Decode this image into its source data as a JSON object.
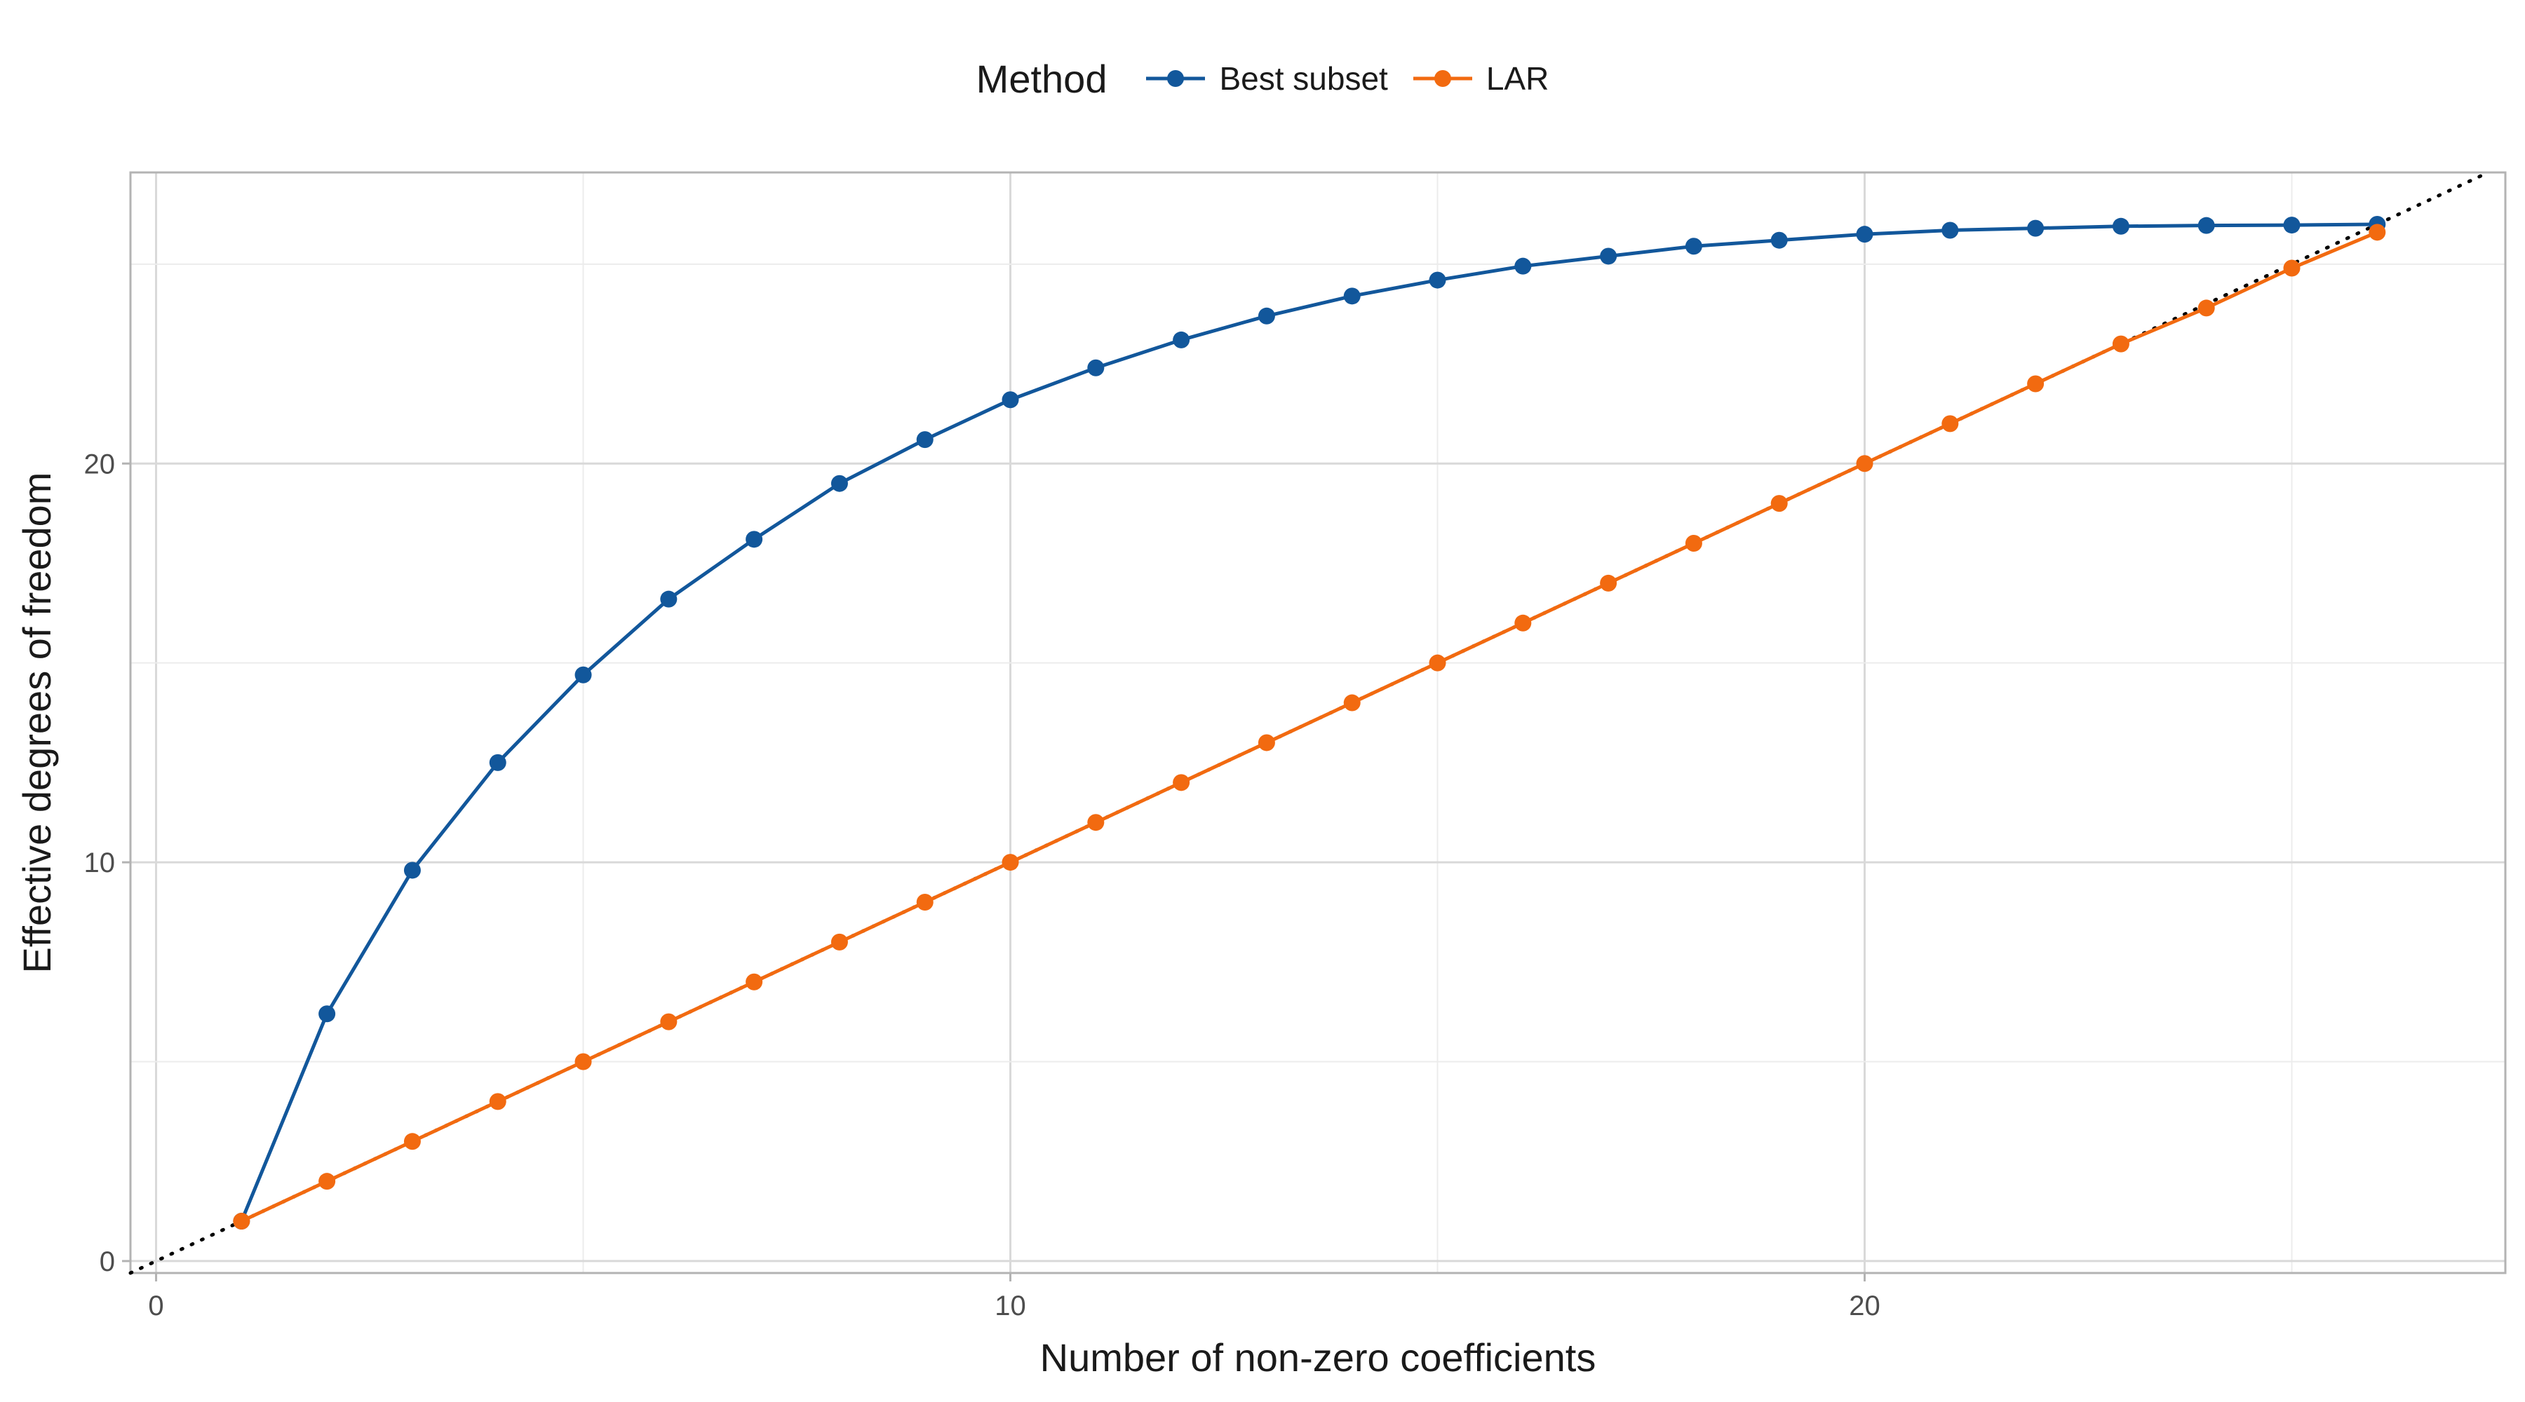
{
  "legend": {
    "title": "Method",
    "items": [
      {
        "label": "Best subset",
        "color": "#12579b"
      },
      {
        "label": "LAR",
        "color": "#f26a10"
      }
    ]
  },
  "chart_data": {
    "type": "line",
    "xlabel": "Number of non-zero coefficients",
    "ylabel": "Effective degrees of freedom",
    "xlim": [
      -0.3,
      27.5
    ],
    "ylim": [
      -0.3,
      27.3
    ],
    "x_ticks": [
      0,
      10,
      20
    ],
    "y_ticks": [
      0,
      10,
      20
    ],
    "grid": true,
    "legend_position": "top",
    "reference_line": {
      "style": "dotted",
      "slope": 1,
      "intercept": 0,
      "color": "#000000"
    },
    "x": [
      1,
      2,
      3,
      4,
      5,
      6,
      7,
      8,
      9,
      10,
      11,
      12,
      13,
      14,
      15,
      16,
      17,
      18,
      19,
      20,
      21,
      22,
      23,
      24,
      25,
      26
    ],
    "series": [
      {
        "name": "Best subset",
        "color": "#12579b",
        "values": [
          1.0,
          6.2,
          9.8,
          12.5,
          14.7,
          16.6,
          18.1,
          19.5,
          20.6,
          21.6,
          22.4,
          23.1,
          23.7,
          24.2,
          24.6,
          24.95,
          25.2,
          25.45,
          25.6,
          25.75,
          25.85,
          25.9,
          25.95,
          25.97,
          25.98,
          26.0
        ]
      },
      {
        "name": "LAR",
        "color": "#f26a10",
        "values": [
          1.0,
          2.0,
          3.0,
          4.0,
          5.0,
          6.0,
          7.0,
          8.0,
          9.0,
          10.0,
          11.0,
          12.0,
          13.0,
          14.0,
          15.0,
          16.0,
          17.0,
          18.0,
          19.0,
          20.0,
          21.0,
          22.0,
          23.0,
          23.9,
          24.9,
          25.8
        ]
      }
    ]
  }
}
